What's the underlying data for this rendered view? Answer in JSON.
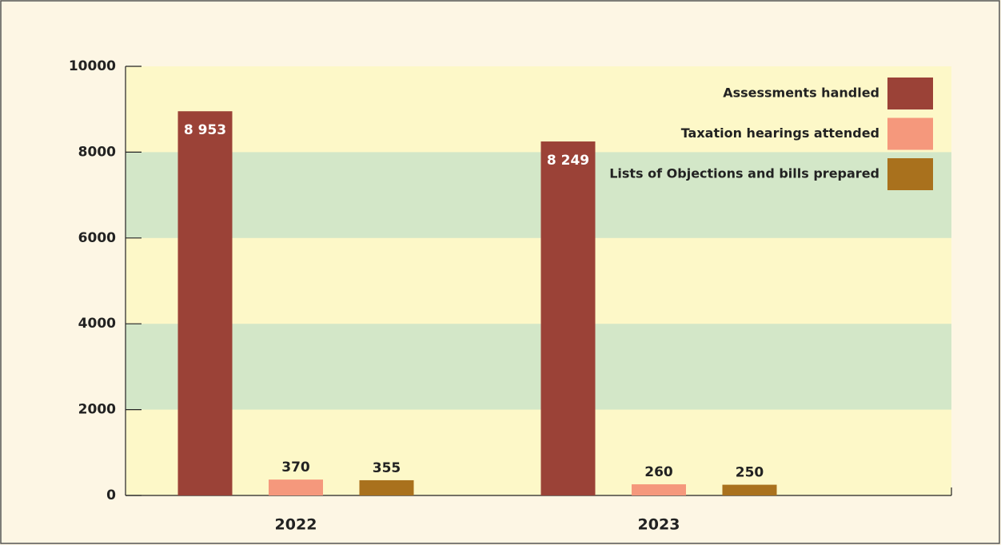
{
  "chart_data": {
    "type": "bar",
    "categories": [
      "2022",
      "2023"
    ],
    "series": [
      {
        "name": "Assessments handled",
        "color": "#9b4237",
        "values": [
          8953,
          8249
        ],
        "value_labels": [
          "8 953",
          "8 249"
        ]
      },
      {
        "name": "Taxation hearings attended",
        "color": "#f5987c",
        "values": [
          370,
          260
        ]
      },
      {
        "name": "Lists of Objections and bills prepared",
        "color": "#a9711d",
        "values": [
          355,
          250
        ]
      }
    ],
    "ylim": [
      0,
      10000
    ],
    "yticks": [
      0,
      2000,
      4000,
      6000,
      8000,
      10000
    ],
    "grid": true,
    "legend": "top-right"
  }
}
